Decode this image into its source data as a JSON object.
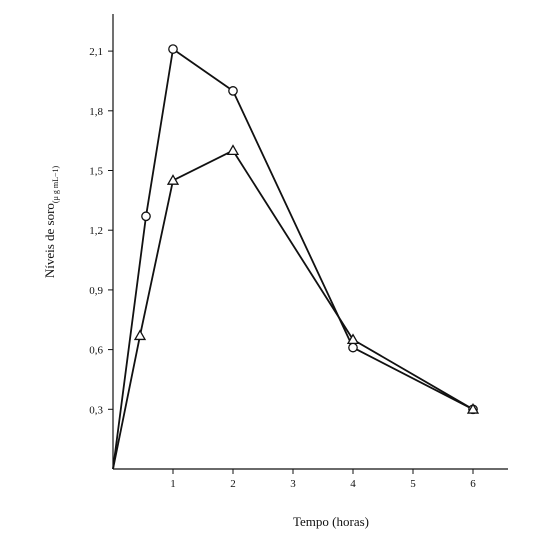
{
  "chart_data": {
    "type": "line",
    "xlabel": "Tempo (horas)",
    "ylabel": "Níveis de soro",
    "ylabel_unit": "(μ g mL−1)",
    "xlim": [
      0,
      6.5
    ],
    "ylim": [
      0,
      2.3
    ],
    "x_ticks": [
      "1",
      "2",
      "3",
      "4",
      "5",
      "6"
    ],
    "y_ticks": [
      "0,3",
      "0,6",
      "0,9",
      "1,2",
      "1,5",
      "1,8",
      "2,1"
    ],
    "grid": false,
    "series": [
      {
        "marker": "circle",
        "x": [
          0,
          0.55,
          1,
          2,
          4,
          6
        ],
        "y": [
          0,
          1.27,
          2.11,
          1.9,
          0.61,
          0.3
        ]
      },
      {
        "marker": "triangle",
        "x": [
          0,
          0.45,
          1,
          2,
          4,
          6
        ],
        "y": [
          0,
          0.67,
          1.45,
          1.6,
          0.65,
          0.3
        ]
      }
    ],
    "colors": {
      "line": "#111111",
      "marker_fill": "#ffffff"
    }
  }
}
